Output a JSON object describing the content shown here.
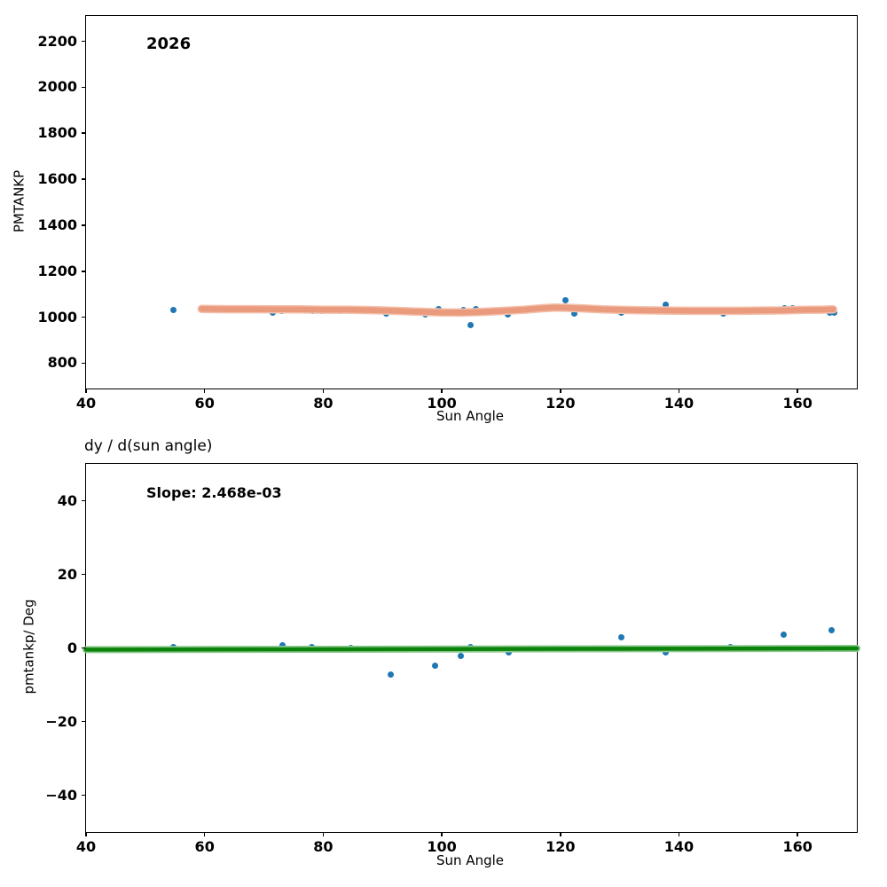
{
  "figure": {
    "background": "#ffffff",
    "text_color": "#000000"
  },
  "colors": {
    "scatter_blue": "#1f77b4",
    "trend_salmon": "#ea9a7d",
    "trend_salmon_edge": "#f4c0ac",
    "fit_green": "#0c840c",
    "fit_green_edge": "#8cc78c",
    "axis_black": "#000000"
  },
  "chart_data": [
    {
      "type": "scatter",
      "annotation": "2026",
      "xlabel": "Sun Angle",
      "ylabel": "PMTANKP",
      "xlim": [
        40,
        170
      ],
      "ylim": [
        690,
        2310
      ],
      "xtick_values": [
        40,
        60,
        80,
        100,
        120,
        140,
        160
      ],
      "xtick_labels": [
        "40",
        "60",
        "80",
        "100",
        "120",
        "140",
        "160"
      ],
      "ytick_values": [
        800,
        1000,
        1200,
        1400,
        1600,
        1800,
        2000,
        2200
      ],
      "ytick_labels": [
        "800",
        "1000",
        "1200",
        "1400",
        "1600",
        "1800",
        "2000",
        "2200"
      ],
      "grid": false,
      "series": [
        {
          "name": "pmtankp-scatter",
          "kind": "scatter",
          "color": "#1f77b4",
          "points": [
            [
              54.7,
              1031
            ],
            [
              71.5,
              1018
            ],
            [
              73.0,
              1026
            ],
            [
              78.2,
              1028
            ],
            [
              79.7,
              1029
            ],
            [
              82.7,
              1029
            ],
            [
              84.6,
              1031
            ],
            [
              88.8,
              1036
            ],
            [
              90.6,
              1015
            ],
            [
              97.2,
              1013
            ],
            [
              98.3,
              1018
            ],
            [
              99.4,
              1036
            ],
            [
              101.4,
              1019
            ],
            [
              102.4,
              1015
            ],
            [
              103.7,
              1033
            ],
            [
              104.9,
              966
            ],
            [
              105.7,
              1036
            ],
            [
              111.2,
              1013
            ],
            [
              119.1,
              1044
            ],
            [
              120.9,
              1072
            ],
            [
              122.3,
              1016
            ],
            [
              128.4,
              1035
            ],
            [
              130.3,
              1021
            ],
            [
              137.7,
              1055
            ],
            [
              147.5,
              1015
            ],
            [
              157.8,
              1040
            ],
            [
              159.1,
              1041
            ],
            [
              165.5,
              1021
            ],
            [
              166.2,
              1020
            ]
          ]
        },
        {
          "name": "lowess-trend-line",
          "kind": "line",
          "color": "#ea9a7d",
          "edge_color": "#f4c0ac",
          "width": 6.5,
          "edge_width": 9.5,
          "points": [
            [
              59.5,
              1036
            ],
            [
              64,
              1035
            ],
            [
              68,
              1035
            ],
            [
              72,
              1034
            ],
            [
              76,
              1034
            ],
            [
              80,
              1033
            ],
            [
              84,
              1033
            ],
            [
              88,
              1031
            ],
            [
              92,
              1028
            ],
            [
              96,
              1024
            ],
            [
              100,
              1021
            ],
            [
              103,
              1020
            ],
            [
              106,
              1022
            ],
            [
              110,
              1027
            ],
            [
              114,
              1033
            ],
            [
              117,
              1039
            ],
            [
              119,
              1042
            ],
            [
              121,
              1041
            ],
            [
              124,
              1038
            ],
            [
              127,
              1034
            ],
            [
              130,
              1032
            ],
            [
              134,
              1030
            ],
            [
              138,
              1029
            ],
            [
              142,
              1028
            ],
            [
              146,
              1028
            ],
            [
              150,
              1028
            ],
            [
              154,
              1029
            ],
            [
              158,
              1030
            ],
            [
              161,
              1032
            ],
            [
              164,
              1033
            ],
            [
              166,
              1034
            ]
          ]
        }
      ]
    },
    {
      "type": "scatter",
      "title": "dy / d(sun angle)",
      "annotation": "Slope: 2.468e-03",
      "slope_value": "2.468e-03",
      "xlabel": "Sun Angle",
      "ylabel": "pmtankp/ Deg",
      "xlim": [
        40,
        170
      ],
      "ylim": [
        -50,
        50
      ],
      "xtick_values": [
        40,
        60,
        80,
        100,
        120,
        140,
        160
      ],
      "xtick_labels": [
        "40",
        "60",
        "80",
        "100",
        "120",
        "140",
        "160"
      ],
      "ytick_values": [
        -40,
        -20,
        0,
        20,
        40
      ],
      "ytick_labels": [
        "−40",
        "−20",
        "0",
        "20",
        "40"
      ],
      "grid": false,
      "series": [
        {
          "name": "slope-scatter",
          "kind": "scatter",
          "color": "#1f77b4",
          "points": [
            [
              54.7,
              0.2
            ],
            [
              73.1,
              0.8
            ],
            [
              78.1,
              0.2
            ],
            [
              84.7,
              0.0
            ],
            [
              91.4,
              -7.2
            ],
            [
              98.8,
              -4.8
            ],
            [
              103.2,
              -2.2
            ],
            [
              104.8,
              0.3
            ],
            [
              111.3,
              -1.2
            ],
            [
              130.3,
              3.0
            ],
            [
              137.8,
              -1.3
            ],
            [
              148.7,
              0.2
            ],
            [
              157.7,
              3.7
            ],
            [
              165.8,
              4.9
            ]
          ]
        },
        {
          "name": "slope-fit-line",
          "kind": "line",
          "color": "#0c840c",
          "edge_color": "#8cc78c",
          "width": 4.5,
          "edge_width": 8,
          "points": [
            [
              40,
              -0.45
            ],
            [
              170,
              -0.13
            ]
          ]
        }
      ]
    }
  ]
}
